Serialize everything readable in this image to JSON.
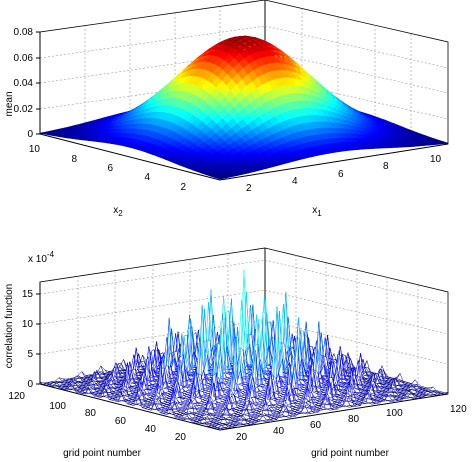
{
  "chart_data": [
    {
      "type": "surface",
      "title": "",
      "xlabel": "x",
      "xlabel_sub": "1",
      "ylabel": "x",
      "ylabel_sub": "2",
      "zlabel": "mean",
      "x_ticks": [
        "2",
        "4",
        "6",
        "8",
        "10"
      ],
      "y_ticks": [
        "2",
        "4",
        "6",
        "8",
        "10"
      ],
      "z_ticks": [
        "0",
        "0.02",
        "0.04",
        "0.06",
        "0.08"
      ],
      "xlim": [
        1,
        11
      ],
      "ylim": [
        1,
        11
      ],
      "zlim": [
        0,
        0.08
      ],
      "grid": true,
      "colormap": "jet",
      "surface": {
        "shape": "gaussian",
        "peak": 0.08,
        "center": [
          6,
          6
        ],
        "spread": 2.3
      }
    },
    {
      "type": "surface",
      "title": "",
      "xlabel": "grid point number",
      "ylabel": "grid point number",
      "zlabel": "correlation function",
      "z_exponent_label": "x 10",
      "z_exponent_sup": "-4",
      "x_ticks": [
        "20",
        "40",
        "60",
        "80",
        "100",
        "120"
      ],
      "y_ticks": [
        "20",
        "40",
        "60",
        "80",
        "100",
        "120"
      ],
      "z_ticks": [
        "0",
        "5",
        "10",
        "15"
      ],
      "xlim": [
        0,
        120
      ],
      "ylim": [
        0,
        120
      ],
      "zlim": [
        0,
        17
      ],
      "grid": true,
      "colormap": "jet",
      "surface": {
        "shape": "periodic-peaks",
        "peak": 17,
        "center": [
          60,
          60
        ],
        "envelope_spread": 30,
        "peak_spacing": 11
      }
    }
  ]
}
